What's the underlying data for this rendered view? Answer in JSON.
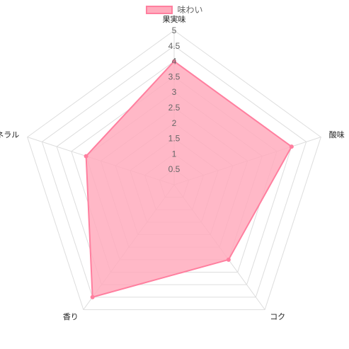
{
  "chart_data": {
    "type": "radar",
    "title": "",
    "legend": {
      "position": "top"
    },
    "labels": [
      "果実味",
      "酸味",
      "コク",
      "香り",
      "ミネラル"
    ],
    "series": [
      {
        "name": "味わい",
        "values": [
          4,
          4,
          3,
          4.5,
          3
        ]
      }
    ],
    "range": [
      0,
      5
    ],
    "ticks": [
      "0.5",
      "1",
      "1.5",
      "2",
      "2.5",
      "3",
      "3.5",
      "4",
      "4.5",
      "5"
    ],
    "colors": {
      "fill": "#ffabbd",
      "stroke": "#ff7f9f",
      "grid": "#dddddd",
      "text": "#666666"
    }
  }
}
